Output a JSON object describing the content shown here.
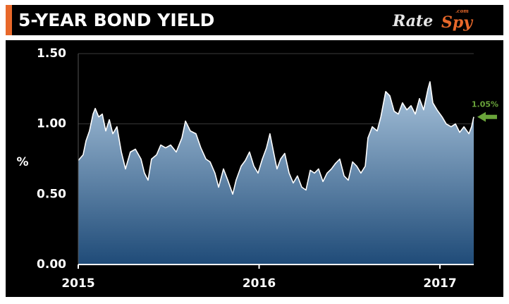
{
  "chart_data": {
    "type": "area",
    "title": "5-YEAR BOND YIELD",
    "logo": [
      "Rate",
      "Spy",
      ".com"
    ],
    "ylabel": "%",
    "x": [
      2015.0,
      2015.027,
      2015.043,
      2015.062,
      2015.082,
      2015.094,
      2015.113,
      2015.133,
      2015.152,
      2015.172,
      2015.191,
      2015.214,
      2015.238,
      2015.261,
      2015.288,
      2015.316,
      2015.347,
      2015.366,
      2015.386,
      2015.405,
      2015.433,
      2015.456,
      2015.483,
      2015.511,
      2015.542,
      2015.573,
      2015.593,
      2015.62,
      2015.651,
      2015.678,
      2015.706,
      2015.729,
      2015.756,
      2015.776,
      2015.803,
      2015.827,
      2015.854,
      2015.873,
      2015.901,
      2015.924,
      2015.947,
      2015.971,
      2015.994,
      2016.018,
      2016.041,
      2016.06,
      2016.08,
      2016.099,
      2016.119,
      2016.142,
      2016.166,
      2016.189,
      2016.212,
      2016.236,
      2016.259,
      2016.283,
      2016.306,
      2016.329,
      2016.353,
      2016.376,
      2016.4,
      2016.423,
      2016.446,
      2016.47,
      2016.493,
      2016.517,
      2016.54,
      2016.563,
      2016.587,
      2016.602,
      2016.626,
      2016.653,
      2016.673,
      2016.7,
      2016.723,
      2016.747,
      2016.77,
      2016.793,
      2016.817,
      2016.84,
      2016.864,
      2016.887,
      2016.91,
      2016.934,
      2016.945,
      2016.961,
      2016.984,
      2017.012,
      2017.035,
      2017.062,
      2017.086,
      2017.109,
      2017.133,
      2017.16,
      2017.175,
      2017.187
    ],
    "values": [
      0.74,
      0.78,
      0.88,
      0.95,
      1.07,
      1.11,
      1.05,
      1.07,
      0.95,
      1.03,
      0.93,
      0.98,
      0.8,
      0.68,
      0.8,
      0.82,
      0.75,
      0.65,
      0.6,
      0.75,
      0.78,
      0.85,
      0.83,
      0.85,
      0.8,
      0.9,
      1.02,
      0.95,
      0.93,
      0.83,
      0.75,
      0.73,
      0.65,
      0.55,
      0.68,
      0.6,
      0.5,
      0.6,
      0.7,
      0.74,
      0.8,
      0.7,
      0.65,
      0.75,
      0.83,
      0.93,
      0.8,
      0.68,
      0.75,
      0.79,
      0.65,
      0.58,
      0.63,
      0.55,
      0.53,
      0.67,
      0.65,
      0.68,
      0.59,
      0.65,
      0.68,
      0.72,
      0.75,
      0.63,
      0.6,
      0.73,
      0.7,
      0.65,
      0.7,
      0.9,
      0.98,
      0.95,
      1.05,
      1.23,
      1.2,
      1.09,
      1.07,
      1.15,
      1.1,
      1.13,
      1.07,
      1.18,
      1.1,
      1.25,
      1.3,
      1.15,
      1.1,
      1.05,
      1.0,
      0.98,
      1.0,
      0.94,
      0.98,
      0.93,
      0.98,
      1.05
    ],
    "value_labels": [
      null,
      null,
      null,
      null,
      null,
      null,
      null,
      null,
      null,
      null,
      null,
      null,
      null,
      null,
      null,
      null,
      null,
      null,
      null,
      null,
      null,
      null,
      null,
      null,
      null,
      null,
      null,
      null,
      null,
      null,
      null,
      null,
      null,
      null,
      null,
      null,
      null,
      null,
      null,
      null,
      null,
      null,
      null,
      null,
      null,
      null,
      null,
      null,
      null,
      null,
      null,
      null,
      null,
      null,
      null,
      null,
      null,
      null,
      null,
      null,
      null,
      null,
      null,
      null,
      null,
      null,
      null,
      null,
      null,
      null,
      null,
      null,
      null,
      null,
      null,
      null,
      null,
      null,
      null,
      null,
      null,
      null,
      null,
      null,
      null,
      null,
      null,
      null,
      null,
      null,
      null,
      null,
      null,
      null,
      null,
      "1.05%"
    ],
    "line_color": "#ffffff",
    "fill_top": "#a9c4dc",
    "fill_bottom": "#1f4b78",
    "label_color": "#6aa43a",
    "xlim": [
      2015,
      2017.187
    ],
    "xticks": [
      2015,
      2016,
      2017
    ],
    "ylim": [
      0,
      1.5
    ],
    "yticks": [
      {
        "value": 0,
        "label": "0.00"
      },
      {
        "value": 0.5,
        "label": "0.50"
      },
      {
        "value": 1,
        "label": "1.00"
      },
      {
        "value": 1.5,
        "label": "1.50"
      }
    ],
    "grid": true
  }
}
